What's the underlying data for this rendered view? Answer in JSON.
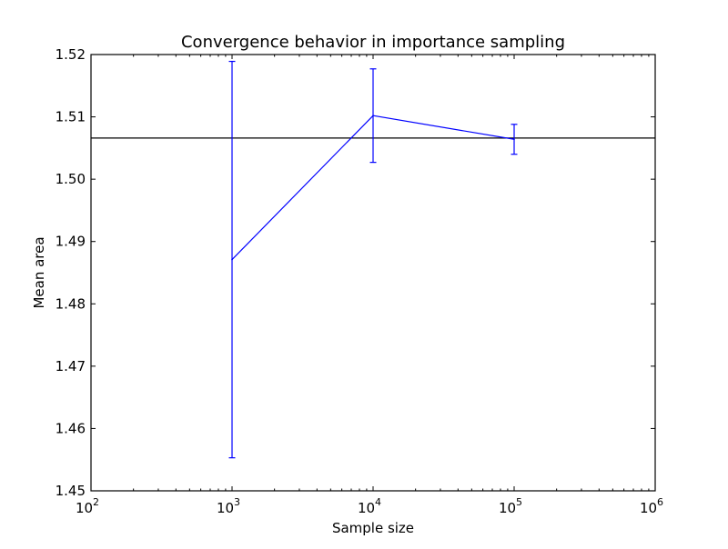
{
  "chart_data": {
    "type": "line",
    "title": "Convergence behavior in importance sampling",
    "xlabel": "Sample size",
    "ylabel": "Mean area",
    "x_scale": "log",
    "xlim": [
      100,
      1000000
    ],
    "ylim": [
      1.45,
      1.52
    ],
    "x_ticks": [
      {
        "value": 100,
        "base": "10",
        "exp": "2"
      },
      {
        "value": 1000,
        "base": "10",
        "exp": "3"
      },
      {
        "value": 10000,
        "base": "10",
        "exp": "4"
      },
      {
        "value": 100000,
        "base": "10",
        "exp": "5"
      },
      {
        "value": 1000000,
        "base": "10",
        "exp": "6"
      }
    ],
    "y_ticks": [
      "1.45",
      "1.46",
      "1.47",
      "1.48",
      "1.49",
      "1.50",
      "1.51",
      "1.52"
    ],
    "grid": false,
    "series": [
      {
        "color": "#0000ff",
        "x": [
          1000,
          10000,
          100000
        ],
        "y": [
          1.4871,
          1.5102,
          1.5064
        ],
        "yerr": [
          0.0318,
          0.0075,
          0.0024
        ]
      }
    ],
    "reference_line": {
      "y": 1.5066,
      "color": "#000000"
    }
  }
}
